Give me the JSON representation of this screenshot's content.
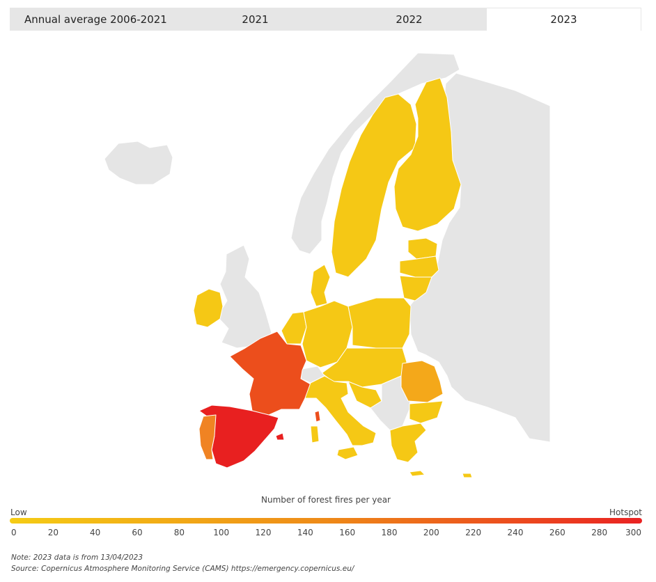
{
  "tabs": [
    {
      "label": "Annual average 2006-2021",
      "active": false
    },
    {
      "label": "2021",
      "active": false
    },
    {
      "label": "2022",
      "active": false
    },
    {
      "label": "2023",
      "active": true
    }
  ],
  "legend": {
    "title": "Number of forest fires per year",
    "low_label": "Low",
    "high_label": "Hotspot",
    "ticks": [
      "0",
      "20",
      "40",
      "60",
      "80",
      "100",
      "120",
      "140",
      "160",
      "180",
      "200",
      "220",
      "240",
      "260",
      "280",
      "300"
    ],
    "min": 0,
    "max": 300,
    "colors": {
      "low": "#f5cc15",
      "mid": "#ee8a18",
      "high": "#ea2222"
    }
  },
  "map": {
    "non_eu_color": "#e5e5e5",
    "highlighted_regions": [
      {
        "name": "France",
        "color": "#ec4e1c"
      },
      {
        "name": "Spain",
        "color": "#e82020"
      },
      {
        "name": "Portugal",
        "color": "#f08323"
      },
      {
        "name": "Romania",
        "color": "#f4a81a"
      },
      {
        "name": "Corsica",
        "color": "#ec4e1c"
      },
      {
        "name": "Balearic Islands",
        "color": "#e82020"
      }
    ]
  },
  "notes": {
    "line1": "Note: 2023 data is from 13/04/2023",
    "line2": "Source: Copernicus Atmosphere Monitoring Service (CAMS) https://emergency.copernicus.eu/"
  }
}
